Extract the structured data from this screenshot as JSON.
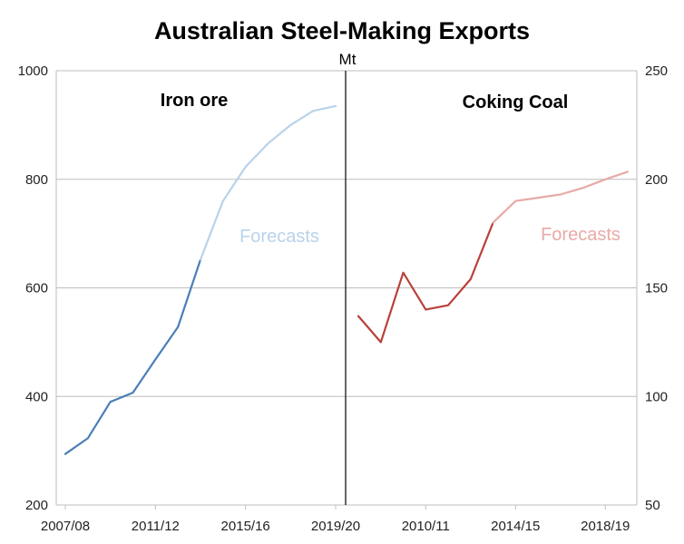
{
  "title": "Australian Steel-Making Exports",
  "unit": "Mt",
  "colors": {
    "iron_actual": "#4a7fb8",
    "iron_forecast": "#b8d3ea",
    "coal_actual": "#b9403a",
    "coal_forecast": "#e8aaa6",
    "grid": "#bdbdbd"
  },
  "chart_data": [
    {
      "type": "line",
      "panel": "left",
      "label": "Iron ore",
      "forecast_label": "Forecasts",
      "axis": "left",
      "ylim": [
        200,
        1000
      ],
      "yticks": [
        200,
        400,
        600,
        800,
        1000
      ],
      "x": [
        "2007/08",
        "2008/09",
        "2009/10",
        "2010/11",
        "2011/12",
        "2012/13",
        "2013/14",
        "2014/15",
        "2015/16",
        "2016/17",
        "2017/18",
        "2018/19",
        "2019/20"
      ],
      "xtick_labels": [
        "2007/08",
        "2011/12",
        "2015/16",
        "2019/20"
      ],
      "series": [
        {
          "role": "actual",
          "x": [
            "2007/08",
            "2008/09",
            "2009/10",
            "2010/11",
            "2011/12",
            "2012/13",
            "2013/14"
          ],
          "values": [
            294,
            323,
            390,
            407,
            468,
            528,
            652
          ]
        },
        {
          "role": "forecast",
          "x": [
            "2013/14",
            "2014/15",
            "2015/16",
            "2016/17",
            "2017/18",
            "2018/19",
            "2019/20"
          ],
          "values": [
            652,
            760,
            823,
            866,
            900,
            926,
            935
          ]
        }
      ]
    },
    {
      "type": "line",
      "panel": "right",
      "label": "Coking Coal",
      "forecast_label": "Forecasts",
      "axis": "right",
      "ylim": [
        50,
        250
      ],
      "yticks": [
        50,
        100,
        150,
        200,
        250
      ],
      "x": [
        "2007/08",
        "2008/09",
        "2009/10",
        "2010/11",
        "2011/12",
        "2012/13",
        "2013/14",
        "2014/15",
        "2015/16",
        "2016/17",
        "2017/18",
        "2018/19",
        "2019/20"
      ],
      "xtick_labels": [
        "2010/11",
        "2014/15",
        "2018/19"
      ],
      "series": [
        {
          "role": "actual",
          "x": [
            "2007/08",
            "2008/09",
            "2009/10",
            "2010/11",
            "2011/12",
            "2012/13",
            "2013/14"
          ],
          "values": [
            137,
            125,
            157,
            140,
            142,
            154,
            180
          ]
        },
        {
          "role": "forecast",
          "x": [
            "2013/14",
            "2014/15",
            "2015/16",
            "2016/17",
            "2017/18",
            "2018/19",
            "2019/20"
          ],
          "values": [
            180,
            190,
            191.5,
            193,
            196,
            200,
            203.5
          ]
        }
      ]
    }
  ]
}
